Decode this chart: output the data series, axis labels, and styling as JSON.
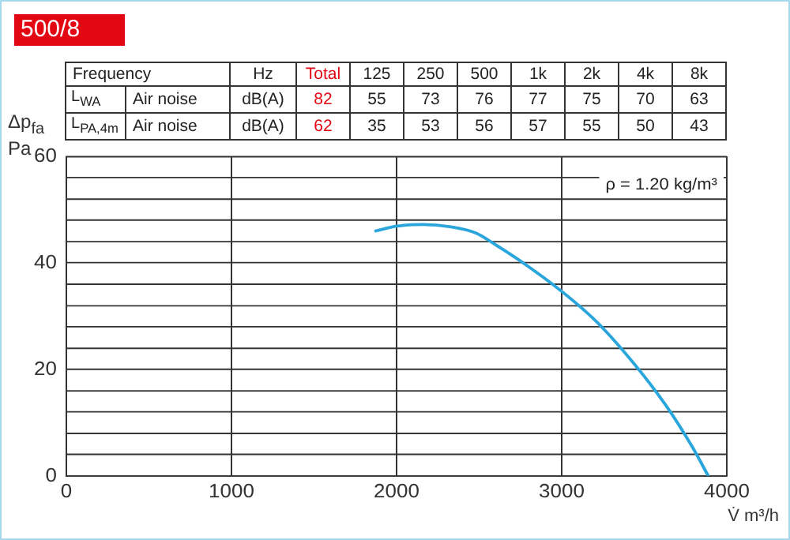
{
  "chart_data": [
    {
      "type": "heatmap",
      "title": "500/8",
      "ylabel": "Frequency",
      "categories": [
        null,
        "Hz",
        "Total",
        "125",
        "250",
        "500",
        "1k",
        "2k",
        "4k",
        "8k"
      ],
      "colors": [
        "#222222",
        "#222222",
        "#e30613",
        "#222222",
        "#222222",
        "#222222",
        "#222222",
        "#222222",
        "#222222",
        "#222222"
      ],
      "y_categories": [
        "L$_{WA}$",
        "L$_{PA,4m}$"
      ],
      "cells": [
        [
          null,
          null,
          null,
          null,
          null,
          null,
          null,
          null,
          null,
          null
        ],
        [
          null,
          null,
          null,
          null,
          null,
          null,
          null,
          null,
          null,
          null
        ]
      ],
      "cell_labels": [
        [
          "Air noise",
          "dB(A)",
          "82",
          "55",
          "73",
          "76",
          "77",
          "75",
          "70",
          "63"
        ],
        [
          "Air noise",
          "dB(A)",
          "62",
          "35",
          "53",
          "56",
          "57",
          "55",
          "50",
          "43"
        ]
      ]
    },
    {
      "type": "line",
      "xlabel": "V̇ m³/h",
      "ylabel": "Δp$_{fa}$\nPa",
      "xlim": [
        0,
        4000
      ],
      "xticks": [
        0,
        1000,
        2000,
        3000,
        4000
      ],
      "ylim": [
        0,
        60
      ],
      "yticks": [
        0,
        {
          "value": 4,
          "label": null
        },
        {
          "value": 8,
          "label": null
        },
        {
          "value": 12,
          "label": null
        },
        {
          "value": 16,
          "label": null
        },
        20,
        {
          "value": 24,
          "label": null
        },
        {
          "value": 28,
          "label": null
        },
        {
          "value": 32,
          "label": null
        },
        {
          "value": 36,
          "label": null
        },
        40,
        {
          "value": 44,
          "label": null
        },
        {
          "value": 48,
          "label": null
        },
        {
          "value": 52,
          "label": null
        },
        {
          "value": 56,
          "label": null
        },
        60
      ],
      "grid": true,
      "legend": false,
      "marker": "none",
      "line_style": "solid",
      "annotations": [
        "ρ = 1.20 kg/m³"
      ],
      "series": [
        {
          "color": "#2aa6dc",
          "x": [
            1874,
            2001,
            2162,
            2321,
            2481,
            2600,
            2753,
            3002,
            3216,
            3440,
            3632,
            3792,
            3888
          ],
          "values": [
            46.0,
            46.9,
            47.2,
            46.8,
            45.6,
            43.4,
            40.3,
            34.6,
            28.8,
            21.0,
            13.2,
            5.4,
            0
          ]
        }
      ]
    }
  ]
}
